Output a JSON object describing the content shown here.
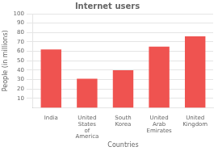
{
  "chart_data": {
    "type": "bar",
    "title": "Internet users",
    "xlabel": "Countries",
    "ylabel": "People (in millions)",
    "categories": [
      "India",
      "United\nStates\nof\nAmerica",
      "South\nKorea",
      "United\nArab\nEmirates",
      "United\nKingdom"
    ],
    "values": [
      62,
      31,
      40,
      65,
      76
    ],
    "color": "#EF5350",
    "ylim": [
      0,
      100
    ],
    "yticks": [
      10,
      20,
      30,
      40,
      50,
      60,
      70,
      80,
      90,
      100
    ],
    "grid": true
  }
}
